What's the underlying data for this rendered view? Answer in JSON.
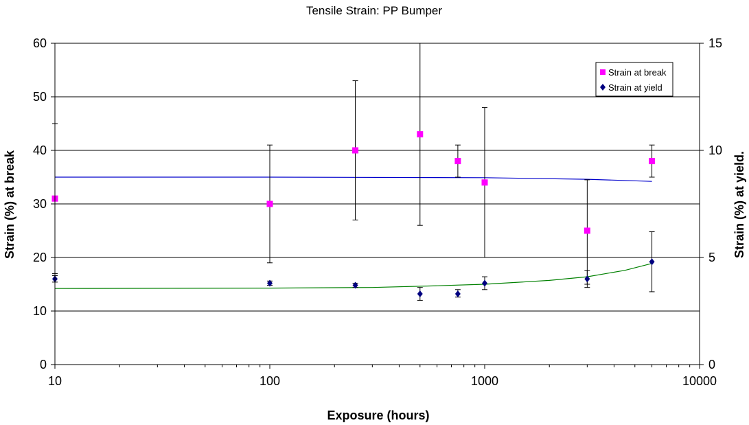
{
  "chart_data": {
    "type": "scatter",
    "title": "Tensile Strain: PP Bumper",
    "xlabel": "Exposure (hours)",
    "ylabel_left": "Strain (%) at break",
    "ylabel_right": "Strain (%) at yield.",
    "x_scale": "log",
    "xlim": [
      10,
      10000
    ],
    "x_ticks": [
      "10",
      "100",
      "1000",
      "10000"
    ],
    "ylim_left": [
      0,
      60
    ],
    "y_ticks_left": [
      "0",
      "10",
      "20",
      "30",
      "40",
      "50",
      "60"
    ],
    "ylim_right": [
      0,
      15
    ],
    "y_ticks_right": [
      "0",
      "5",
      "10",
      "15"
    ],
    "grid": "horizontal",
    "legend_position": "top-right",
    "series": [
      {
        "name": "Strain at break",
        "axis": "left",
        "marker": "square",
        "color": "#ff00ff",
        "points": [
          {
            "x": 10,
            "y": 31,
            "err_low": 17,
            "err_high": 45
          },
          {
            "x": 100,
            "y": 30,
            "err_low": 19,
            "err_high": 41
          },
          {
            "x": 250,
            "y": 40,
            "err_low": 27,
            "err_high": 53
          },
          {
            "x": 500,
            "y": 43,
            "err_low": 26,
            "err_high": 60
          },
          {
            "x": 750,
            "y": 38,
            "err_low": 35,
            "err_high": 41
          },
          {
            "x": 1000,
            "y": 34,
            "err_low": 20,
            "err_high": 48
          },
          {
            "x": 3000,
            "y": 25,
            "err_low": 15,
            "err_high": 34.5
          },
          {
            "x": 6000,
            "y": 38,
            "err_low": 35,
            "err_high": 41
          }
        ],
        "trendline": {
          "color": "#0000cc",
          "points": [
            [
              10,
              35
            ],
            [
              100,
              35
            ],
            [
              1000,
              34.9
            ],
            [
              3000,
              34.6
            ],
            [
              6000,
              34.2
            ]
          ]
        }
      },
      {
        "name": "Strain at yield",
        "axis": "right",
        "marker": "diamond",
        "color": "#000080",
        "points": [
          {
            "x": 10,
            "y": 4.0,
            "err_low": 3.85,
            "err_high": 4.15
          },
          {
            "x": 100,
            "y": 3.8,
            "err_low": 3.7,
            "err_high": 3.9
          },
          {
            "x": 250,
            "y": 3.7,
            "err_low": 3.6,
            "err_high": 3.8
          },
          {
            "x": 500,
            "y": 3.3,
            "err_low": 3.0,
            "err_high": 3.6
          },
          {
            "x": 750,
            "y": 3.3,
            "err_low": 3.15,
            "err_high": 3.5
          },
          {
            "x": 1000,
            "y": 3.8,
            "err_low": 3.5,
            "err_high": 4.1
          },
          {
            "x": 3000,
            "y": 4.0,
            "err_low": 3.6,
            "err_high": 4.4
          },
          {
            "x": 6000,
            "y": 4.8,
            "err_low": 3.4,
            "err_high": 6.2
          }
        ],
        "trendline": {
          "color": "#008000",
          "points": [
            [
              10,
              3.55
            ],
            [
              100,
              3.57
            ],
            [
              300,
              3.6
            ],
            [
              600,
              3.68
            ],
            [
              1000,
              3.75
            ],
            [
              2000,
              3.93
            ],
            [
              3000,
              4.1
            ],
            [
              4500,
              4.4
            ],
            [
              6000,
              4.72
            ]
          ]
        }
      }
    ]
  }
}
